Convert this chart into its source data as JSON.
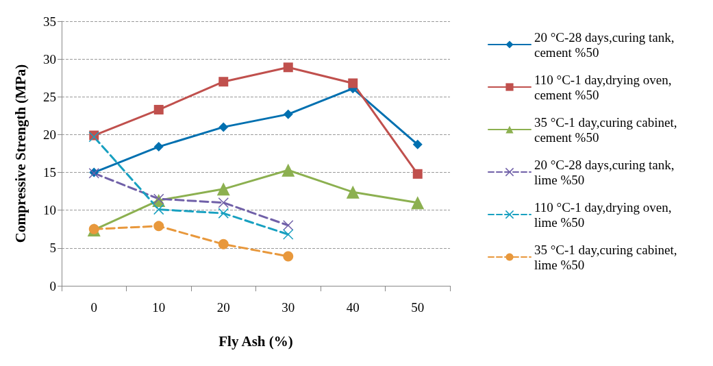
{
  "chart_data": {
    "type": "line",
    "xlabel": "Fly Ash (%)",
    "ylabel": "Compressive Strength (MPa)",
    "categories": [
      "0",
      "10",
      "20",
      "30",
      "40",
      "50"
    ],
    "ylim": [
      0,
      35
    ],
    "yticks": [
      0,
      5,
      10,
      15,
      20,
      25,
      30,
      35
    ],
    "grid": "y",
    "legend": "right",
    "series": [
      {
        "name": "20 °C-28 days,curing tank, cement %50",
        "color": "#0070b0",
        "marker": "diamond",
        "line_style": "solid",
        "values": [
          15,
          18.4,
          21,
          22.7,
          26.1,
          18.7
        ]
      },
      {
        "name": "110 °C-1 day,drying oven, cement %50",
        "color": "#c0504d",
        "marker": "square",
        "line_style": "solid",
        "values": [
          19.9,
          23.3,
          27,
          28.9,
          26.8,
          14.8
        ]
      },
      {
        "name": "35 °C-1 day,curing cabinet, cement %50",
        "color": "#8cb050",
        "marker": "triangle",
        "line_style": "solid",
        "values": [
          7.4,
          11.3,
          12.8,
          15.3,
          12.4,
          11
        ]
      },
      {
        "name": "20 °C-28 days,curing tank, lime %50",
        "color": "#7060a8",
        "marker": "cross",
        "line_style": "dashed",
        "values": [
          14.9,
          11.5,
          11,
          8,
          null,
          null
        ]
      },
      {
        "name": "110 °C-1 day,drying oven, lime %50",
        "color": "#18a0c0",
        "marker": "cross",
        "line_style": "dashed",
        "values": [
          19.7,
          10.1,
          9.6,
          6.8,
          null,
          null
        ]
      },
      {
        "name": "35 °C-1 day,curing cabinet, lime %50",
        "color": "#e8983c",
        "marker": "circle",
        "line_style": "dashed",
        "values": [
          7.5,
          7.9,
          5.5,
          3.9,
          null,
          null
        ]
      }
    ]
  }
}
